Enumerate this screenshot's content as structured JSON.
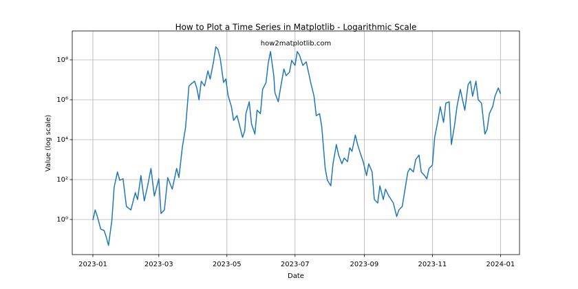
{
  "chart_data": {
    "type": "line",
    "title": "How to Plot a Time Series in Matplotlib - Logarithmic Scale",
    "annotation": "how2matplotlib.com",
    "x_label": "Date",
    "y_label": "Value (log scale)",
    "yscale": "log",
    "grid": true,
    "xlim": [
      -18.5,
      382
    ],
    "ylim": [
      0.0174,
      2800000000.0
    ],
    "xticks": [
      {
        "value": 0,
        "label": "2023-01"
      },
      {
        "value": 59,
        "label": "2023-03"
      },
      {
        "value": 120,
        "label": "2023-05"
      },
      {
        "value": 181,
        "label": "2023-07"
      },
      {
        "value": 243,
        "label": "2023-09"
      },
      {
        "value": 304,
        "label": "2023-11"
      },
      {
        "value": 365,
        "label": "2024-01"
      }
    ],
    "yticks": [
      {
        "value": 1,
        "label": "10⁰"
      },
      {
        "value": 100,
        "label": "10²"
      },
      {
        "value": 10000,
        "label": "10⁴"
      },
      {
        "value": 1000000,
        "label": "10⁶"
      },
      {
        "value": 100000000,
        "label": "10⁸"
      }
    ],
    "x": [
      0,
      2,
      4,
      7,
      10,
      12,
      14,
      17,
      19,
      22,
      24,
      27,
      30,
      34,
      38,
      40,
      43,
      46,
      49,
      52,
      55,
      59,
      61,
      64,
      67,
      71,
      75,
      77,
      80,
      83,
      86,
      88,
      91,
      93,
      95,
      97,
      100,
      103,
      105,
      108,
      110,
      112,
      114,
      117,
      119,
      121,
      124,
      126,
      129,
      131,
      134,
      136,
      137,
      140,
      142,
      145,
      147,
      150,
      152,
      155,
      157,
      159,
      162,
      163,
      166,
      168,
      171,
      173,
      176,
      178,
      181,
      183,
      185,
      188,
      191,
      193,
      195,
      198,
      200,
      203,
      205,
      208,
      210,
      213,
      215,
      218,
      220,
      223,
      225,
      228,
      230,
      232,
      235,
      237,
      240,
      242,
      245,
      247,
      250,
      252,
      255,
      257,
      260,
      262,
      265,
      267,
      269,
      272,
      274,
      277,
      279,
      282,
      284,
      287,
      289,
      292,
      294,
      297,
      299,
      301,
      304,
      306,
      309,
      311,
      314,
      316,
      319,
      321,
      324,
      326,
      329,
      331,
      333,
      336,
      338,
      340,
      343,
      345,
      348,
      351,
      353,
      355,
      358,
      360,
      363,
      365
    ],
    "series": [
      {
        "color": "#1f77b4",
        "values": [
          0.93,
          3,
          1.4,
          0.33,
          0.28,
          0.13,
          0.05,
          0.93,
          42,
          240,
          92,
          110,
          4.5,
          3,
          22,
          10,
          160,
          8.5,
          49,
          360,
          15,
          110,
          2,
          3,
          126,
          33,
          360,
          126,
          3900,
          42000,
          4900000.0,
          6200000.0,
          8500000.0,
          3900000.0,
          1000000.0,
          8500000.0,
          4900000.0,
          28000000.0,
          11000000.0,
          79000000.0,
          450000000.0,
          330000000.0,
          120000000.0,
          7300000.0,
          11000000.0,
          1700000.0,
          450000.0,
          92000.0,
          160000.0,
          62000.0,
          13000.0,
          28000.0,
          200000.0,
          790000.0,
          62000.0,
          19000.0,
          300000.0,
          200000.0,
          3300000.0,
          7300000.0,
          67000000.0,
          260000000.0,
          16000000.0,
          2200000.0,
          790000.0,
          3900000.0,
          35000000.0,
          16000000.0,
          24000000.0,
          93000000.0,
          53000000.0,
          260000000.0,
          170000000.0,
          53000000.0,
          79000000.0,
          24000000.0,
          7300000.0,
          1500000.0,
          160000.0,
          200000.0,
          42000.0,
          360,
          92,
          49,
          620,
          5700,
          1700,
          620,
          1200,
          790,
          3900,
          2600,
          17000.0,
          5700,
          1700,
          790,
          160,
          620,
          240,
          10,
          6.7,
          49,
          10,
          33,
          15,
          10,
          6.7,
          1.4,
          3,
          4.5,
          22,
          240,
          360,
          240,
          1000,
          1700,
          240,
          160,
          110,
          360,
          530,
          13000.0,
          92000.0,
          450000.0,
          73000.0,
          670000.0,
          790000.0,
          5700,
          62000.0,
          450000.0,
          3300000.0,
          1000000.0,
          300000.0,
          5700000.0,
          8500000.0,
          1500000.0,
          8500000.0,
          1000000.0,
          670000.0,
          19000.0,
          33000.0,
          200000.0,
          450000.0,
          1500000.0,
          3900000.0,
          2000000.0
        ]
      }
    ]
  }
}
